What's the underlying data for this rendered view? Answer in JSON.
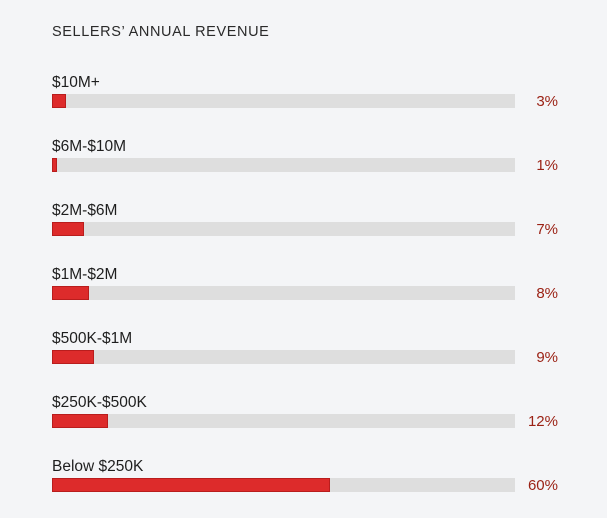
{
  "chart_data": {
    "type": "bar",
    "title": "SELLERS’ ANNUAL REVENUE",
    "orientation": "horizontal",
    "categories": [
      "$10M+",
      "$6M-$10M",
      "$2M-$6M",
      "$1M-$2M",
      "$500K-$1M",
      "$250K-$500K",
      "Below $250K"
    ],
    "values": [
      3,
      1,
      7,
      8,
      9,
      12,
      60
    ],
    "value_labels": [
      "3%",
      "1%",
      "7%",
      "8%",
      "9%",
      "12%",
      "60%"
    ],
    "unit": "%",
    "xlim": [
      0,
      100
    ],
    "xlabel": "",
    "ylabel": "",
    "grid": false,
    "colors": {
      "bar": "#dd2b2b",
      "track": "#dedede",
      "value_label": "#9b2215"
    }
  }
}
